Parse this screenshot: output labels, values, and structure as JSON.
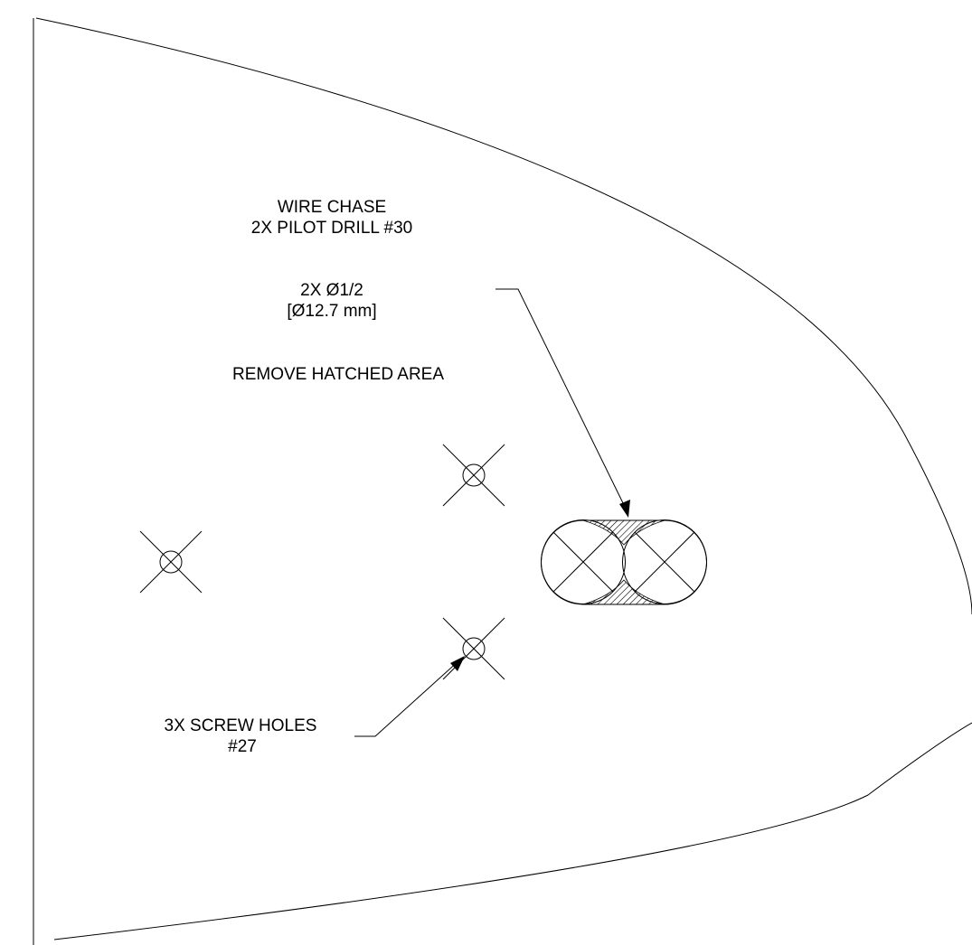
{
  "notes": {
    "wire_chase": {
      "line1": "WIRE CHASE",
      "line2": "2X PILOT DRILL #30",
      "line3": "2X Ø1/2",
      "line4": "[Ø12.7 mm]",
      "line5": "REMOVE HATCHED AREA"
    },
    "screw_holes": {
      "line1": "3X SCREW HOLES",
      "line2": "#27"
    }
  },
  "colors": {
    "line": "#000000",
    "background": "#ffffff"
  }
}
